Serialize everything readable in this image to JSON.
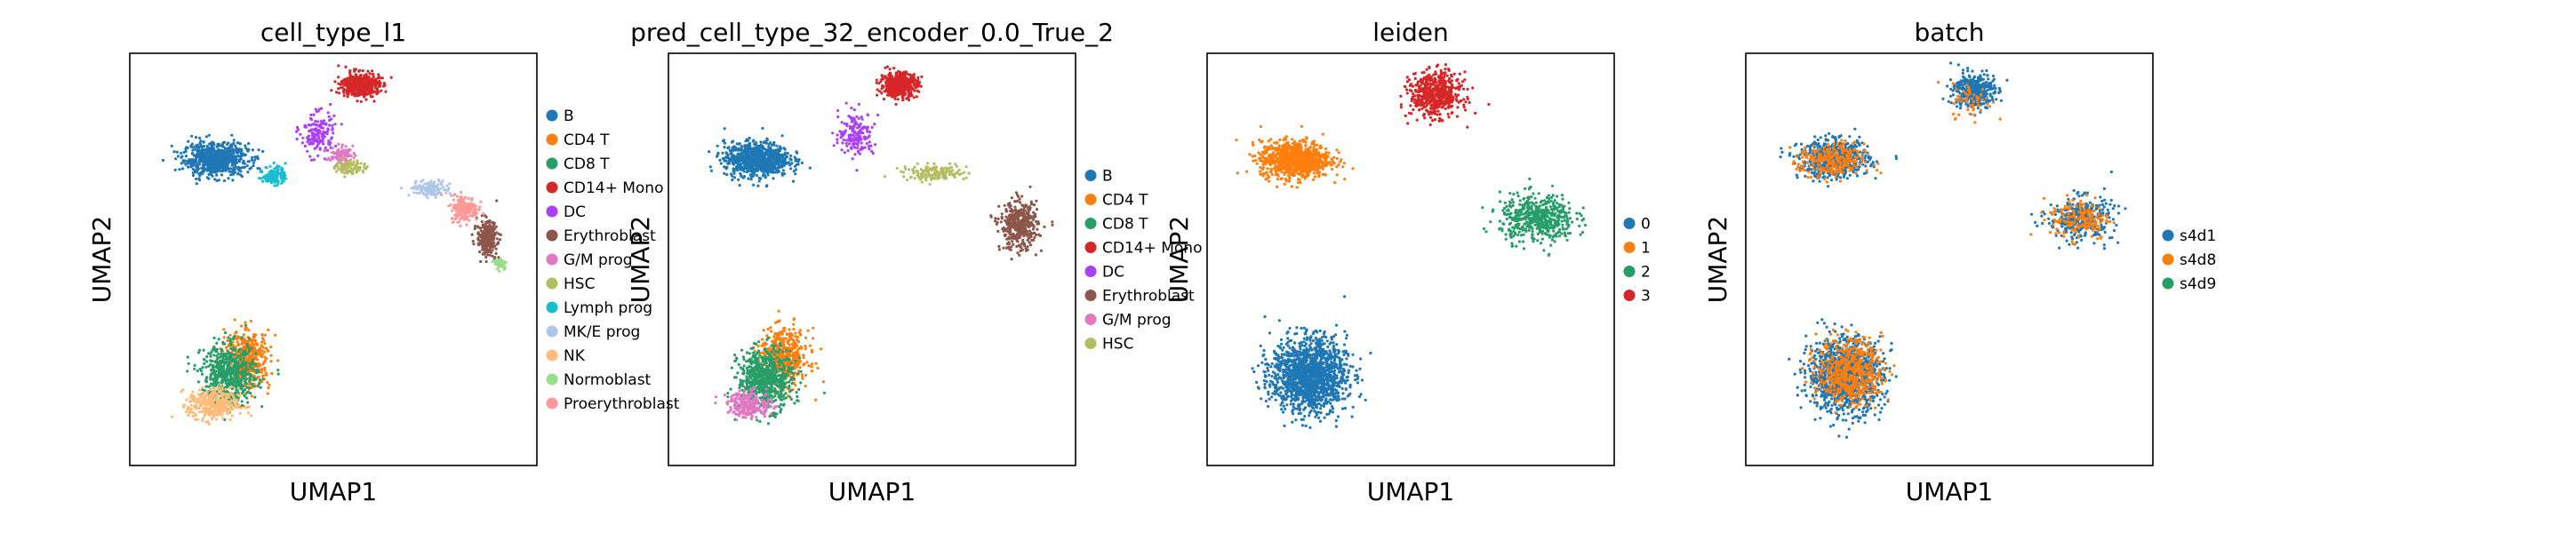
{
  "chart_data": [
    {
      "type": "scatter",
      "title": "cell_type_l1",
      "xlabel": "UMAP1",
      "ylabel": "UMAP2",
      "ticks": false,
      "grid": false,
      "legend_placement": "right-outside",
      "legend": [
        {
          "label": "B",
          "color": "#1f77b4"
        },
        {
          "label": "CD4 T",
          "color": "#ff7f0e"
        },
        {
          "label": "CD8 T",
          "color": "#279e68"
        },
        {
          "label": "CD14+ Mono",
          "color": "#d62728"
        },
        {
          "label": "DC",
          "color": "#aa40fc"
        },
        {
          "label": "Erythroblast",
          "color": "#8c564b"
        },
        {
          "label": "G/M prog",
          "color": "#e377c2"
        },
        {
          "label": "HSC",
          "color": "#b5bd61"
        },
        {
          "label": "Lymph prog",
          "color": "#17becf"
        },
        {
          "label": "MK/E prog",
          "color": "#aec7e8"
        },
        {
          "label": "NK",
          "color": "#ffbb78"
        },
        {
          "label": "Normoblast",
          "color": "#98df8a"
        },
        {
          "label": "Proerythroblast",
          "color": "#ff9896"
        }
      ],
      "clusters": [
        {
          "category": "B",
          "center": [
            -3.2,
            5.6
          ],
          "spread": [
            1.3,
            0.75
          ],
          "n": 700,
          "color": "#1f77b4"
        },
        {
          "category": "CD4 T",
          "center": [
            -1.8,
            -4.6
          ],
          "spread": [
            0.9,
            1.3
          ],
          "n": 450,
          "color": "#ff7f0e"
        },
        {
          "category": "CD8 T",
          "center": [
            -2.6,
            -5.4
          ],
          "spread": [
            1.1,
            1.4
          ],
          "n": 600,
          "color": "#279e68"
        },
        {
          "category": "CD14+ Mono",
          "center": [
            3.2,
            9.4
          ],
          "spread": [
            0.75,
            0.55
          ],
          "n": 450,
          "color": "#d62728"
        },
        {
          "category": "DC",
          "center": [
            1.3,
            6.9
          ],
          "spread": [
            0.7,
            1.0
          ],
          "n": 160,
          "color": "#aa40fc"
        },
        {
          "category": "Erythroblast",
          "center": [
            8.8,
            1.6
          ],
          "spread": [
            0.4,
            0.8
          ],
          "n": 280,
          "color": "#8c564b"
        },
        {
          "category": "G/M prog",
          "center": [
            2.3,
            5.8
          ],
          "spread": [
            0.5,
            0.4
          ],
          "n": 80,
          "color": "#e377c2"
        },
        {
          "category": "HSC",
          "center": [
            2.8,
            5.2
          ],
          "spread": [
            0.6,
            0.35
          ],
          "n": 90,
          "color": "#b5bd61"
        },
        {
          "category": "Lymph prog",
          "center": [
            -0.6,
            4.8
          ],
          "spread": [
            0.45,
            0.45
          ],
          "n": 120,
          "color": "#17becf"
        },
        {
          "category": "MK/E prog",
          "center": [
            6.3,
            4.1
          ],
          "spread": [
            0.8,
            0.35
          ],
          "n": 140,
          "color": "#aec7e8"
        },
        {
          "category": "NK",
          "center": [
            -3.3,
            -6.9
          ],
          "spread": [
            1.0,
            0.75
          ],
          "n": 350,
          "color": "#ffbb78"
        },
        {
          "category": "Normoblast",
          "center": [
            9.4,
            0.3
          ],
          "spread": [
            0.25,
            0.3
          ],
          "n": 60,
          "color": "#98df8a"
        },
        {
          "category": "Proerythroblast",
          "center": [
            7.8,
            3.1
          ],
          "spread": [
            0.55,
            0.6
          ],
          "n": 200,
          "color": "#ff9896"
        }
      ]
    },
    {
      "type": "scatter",
      "title": "pred_cell_type_32_encoder_0.0_True_2",
      "xlabel": "UMAP1",
      "ylabel": "UMAP2",
      "ticks": false,
      "grid": false,
      "legend_placement": "right-outside",
      "legend": [
        {
          "label": "B",
          "color": "#1f77b4"
        },
        {
          "label": "CD4 T",
          "color": "#ff7f0e"
        },
        {
          "label": "CD8 T",
          "color": "#279e68"
        },
        {
          "label": "CD14+ Mono",
          "color": "#d62728"
        },
        {
          "label": "DC",
          "color": "#aa40fc"
        },
        {
          "label": "Erythroblast",
          "color": "#8c564b"
        },
        {
          "label": "G/M prog",
          "color": "#e377c2"
        },
        {
          "label": "HSC",
          "color": "#b5bd61"
        }
      ],
      "clusters": [
        {
          "category": "B",
          "center": [
            -3.1,
            5.6
          ],
          "spread": [
            1.3,
            0.8
          ],
          "n": 800,
          "color": "#1f77b4"
        },
        {
          "category": "CD4 T",
          "center": [
            -1.9,
            -4.5
          ],
          "spread": [
            1.0,
            1.3
          ],
          "n": 500,
          "color": "#ff7f0e"
        },
        {
          "category": "CD8 T",
          "center": [
            -2.7,
            -5.6
          ],
          "spread": [
            1.1,
            1.4
          ],
          "n": 650,
          "color": "#279e68"
        },
        {
          "category": "CD14+ Mono",
          "center": [
            3.2,
            9.4
          ],
          "spread": [
            0.75,
            0.55
          ],
          "n": 480,
          "color": "#d62728"
        },
        {
          "category": "DC",
          "center": [
            1.3,
            6.9
          ],
          "spread": [
            0.7,
            1.0
          ],
          "n": 170,
          "color": "#aa40fc"
        },
        {
          "category": "Erythroblast",
          "center": [
            8.5,
            2.2
          ],
          "spread": [
            0.75,
            1.1
          ],
          "n": 420,
          "color": "#8c564b"
        },
        {
          "category": "G/M prog",
          "center": [
            -3.4,
            -6.9
          ],
          "spread": [
            0.9,
            0.6
          ],
          "n": 220,
          "color": "#e377c2"
        },
        {
          "category": "HSC",
          "center": [
            4.8,
            4.9
          ],
          "spread": [
            1.3,
            0.35
          ],
          "n": 150,
          "color": "#b5bd61"
        }
      ]
    },
    {
      "type": "scatter",
      "title": "leiden",
      "xlabel": "UMAP1",
      "ylabel": "UMAP2",
      "ticks": false,
      "grid": false,
      "legend_placement": "right-outside",
      "legend": [
        {
          "label": "0",
          "color": "#1f77b4"
        },
        {
          "label": "1",
          "color": "#ff7f0e"
        },
        {
          "label": "2",
          "color": "#279e68"
        },
        {
          "label": "3",
          "color": "#d62728"
        }
      ],
      "clusters": [
        {
          "category": "0",
          "center": [
            -2.5,
            -5.4
          ],
          "spread": [
            1.5,
            1.7
          ],
          "n": 1500,
          "color": "#1f77b4"
        },
        {
          "category": "1",
          "center": [
            -3.1,
            5.6
          ],
          "spread": [
            1.4,
            0.85
          ],
          "n": 900,
          "color": "#ff7f0e"
        },
        {
          "category": "2",
          "center": [
            7.6,
            2.6
          ],
          "spread": [
            1.5,
            1.1
          ],
          "n": 520,
          "color": "#279e68"
        },
        {
          "category": "3",
          "center": [
            3.1,
            8.9
          ],
          "spread": [
            1.0,
            1.0
          ],
          "n": 560,
          "color": "#d62728"
        }
      ]
    },
    {
      "type": "scatter",
      "title": "batch",
      "xlabel": "UMAP1",
      "ylabel": "UMAP2",
      "ticks": false,
      "grid": false,
      "legend_placement": "right-outside",
      "legend": [
        {
          "label": "s4d1",
          "color": "#1f77b4"
        },
        {
          "label": "s4d8",
          "color": "#ff7f0e"
        },
        {
          "label": "s4d9",
          "color": "#279e68"
        }
      ],
      "clusters": [
        {
          "category": "s4d1",
          "center": [
            -2.6,
            -5.4
          ],
          "spread": [
            1.5,
            1.7
          ],
          "n": 1100,
          "color": "#1f77b4"
        },
        {
          "category": "s4d1",
          "center": [
            -3.1,
            5.6
          ],
          "spread": [
            1.4,
            0.85
          ],
          "n": 600,
          "color": "#1f77b4"
        },
        {
          "category": "s4d1",
          "center": [
            3.1,
            9.1
          ],
          "spread": [
            0.8,
            0.8
          ],
          "n": 400,
          "color": "#1f77b4"
        },
        {
          "category": "s4d1",
          "center": [
            7.8,
            2.6
          ],
          "spread": [
            1.3,
            1.0
          ],
          "n": 320,
          "color": "#1f77b4"
        },
        {
          "category": "s4d8",
          "center": [
            -2.4,
            -5.2
          ],
          "spread": [
            1.3,
            1.5
          ],
          "n": 550,
          "color": "#ff7f0e"
        },
        {
          "category": "s4d8",
          "center": [
            -3.2,
            5.5
          ],
          "spread": [
            1.3,
            0.8
          ],
          "n": 280,
          "color": "#ff7f0e"
        },
        {
          "category": "s4d8",
          "center": [
            7.8,
            2.6
          ],
          "spread": [
            1.2,
            1.0
          ],
          "n": 160,
          "color": "#ff7f0e"
        },
        {
          "category": "s4d8",
          "center": [
            3.0,
            8.6
          ],
          "spread": [
            0.8,
            0.8
          ],
          "n": 60,
          "color": "#ff7f0e"
        }
      ]
    }
  ]
}
